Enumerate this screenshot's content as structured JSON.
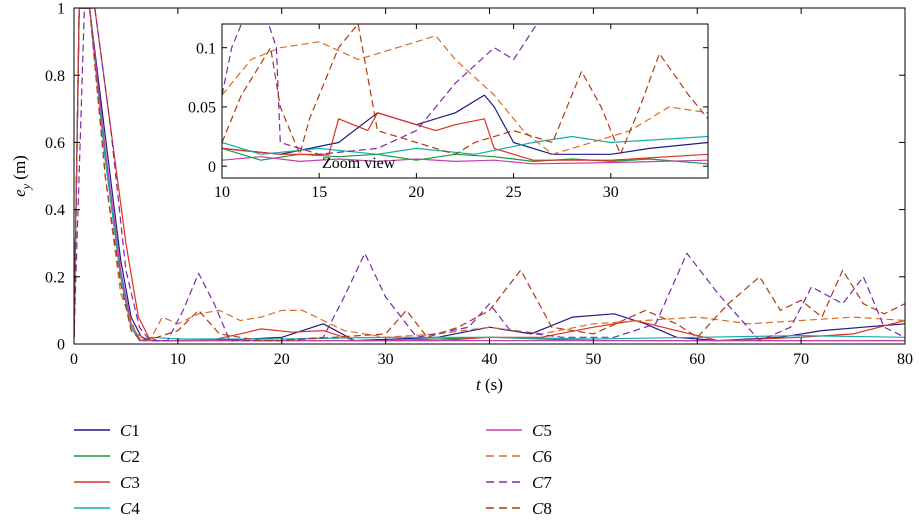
{
  "chart_data": [
    {
      "panel": "main",
      "type": "line",
      "xlabel": "t (s)",
      "xlabel_italic": "t",
      "xlabel_unit": "(s)",
      "ylabel": "e_y (m)",
      "ylabel_base": "e",
      "ylabel_sub": "y",
      "ylabel_unit": "(m)",
      "xlim": [
        0,
        80
      ],
      "ylim": [
        0,
        1.0
      ],
      "xticks": [
        0,
        10,
        20,
        30,
        40,
        50,
        60,
        70,
        80
      ],
      "xtick_labels": [
        "0",
        "10",
        "20",
        "30",
        "40",
        "50",
        "60",
        "70",
        "80"
      ],
      "yticks": [
        0,
        0.2,
        0.4,
        0.6,
        0.8,
        1.0
      ],
      "ytick_labels": [
        "0",
        "0.2",
        "0.4",
        "0.6",
        "0.8",
        "1"
      ],
      "grid": false,
      "legend_placement": "bottom, two columns",
      "series": [
        {
          "name": "C1",
          "color": "#1f1a8a",
          "dash": "solid",
          "x": [
            0,
            0.5,
            1.5,
            3,
            4.5,
            5.5,
            6.5,
            7.5,
            10,
            15,
            20,
            24,
            27,
            35,
            40,
            44,
            48,
            52,
            55,
            58,
            62,
            68,
            72,
            76,
            80
          ],
          "y": [
            0.02,
            1.0,
            1.0,
            0.62,
            0.25,
            0.08,
            0.02,
            0.01,
            0.01,
            0.012,
            0.02,
            0.06,
            0.01,
            0.02,
            0.05,
            0.03,
            0.08,
            0.09,
            0.06,
            0.02,
            0.01,
            0.02,
            0.04,
            0.05,
            0.06
          ]
        },
        {
          "name": "C2",
          "color": "#1a9a3a",
          "dash": "solid",
          "x": [
            0,
            0.5,
            1.5,
            3,
            4.5,
            5.5,
            6.3,
            7.5,
            10,
            20,
            30,
            40,
            50,
            60,
            70,
            80
          ],
          "y": [
            0.02,
            1.0,
            1.0,
            0.55,
            0.2,
            0.05,
            0.01,
            0.01,
            0.01,
            0.01,
            0.01,
            0.02,
            0.01,
            0.01,
            0.01,
            0.01
          ]
        },
        {
          "name": "C3",
          "color": "#e03020",
          "dash": "solid",
          "x": [
            0,
            0.5,
            2,
            3.5,
            5,
            6.2,
            7.2,
            8,
            10,
            13,
            16,
            18,
            21,
            24,
            27,
            35,
            40,
            45,
            50,
            54,
            58,
            62,
            70,
            75,
            80
          ],
          "y": [
            0.02,
            1.0,
            1.0,
            0.65,
            0.3,
            0.08,
            0.02,
            0.01,
            0.01,
            0.01,
            0.03,
            0.045,
            0.035,
            0.04,
            0.01,
            0.01,
            0.02,
            0.02,
            0.05,
            0.07,
            0.04,
            0.01,
            0.02,
            0.03,
            0.07
          ]
        },
        {
          "name": "C4",
          "color": "#10b0a8",
          "dash": "solid",
          "x": [
            0,
            0.5,
            1.5,
            3,
            4.5,
            5.5,
            6.4,
            7.5,
            10,
            20,
            30,
            40,
            50,
            60,
            70,
            80
          ],
          "y": [
            0.02,
            1.0,
            1.0,
            0.55,
            0.2,
            0.05,
            0.01,
            0.02,
            0.015,
            0.015,
            0.02,
            0.02,
            0.015,
            0.02,
            0.025,
            0.02
          ]
        },
        {
          "name": "C5",
          "color": "#c040b0",
          "dash": "solid",
          "x": [
            0,
            0.5,
            1.5,
            3,
            4.5,
            5.5,
            6.4,
            7.5,
            10,
            20,
            30,
            40,
            50,
            60,
            70,
            80
          ],
          "y": [
            0.02,
            1.0,
            1.0,
            0.58,
            0.22,
            0.06,
            0.01,
            0.01,
            0.01,
            0.01,
            0.01,
            0.01,
            0.01,
            0.01,
            0.01,
            0.01
          ]
        },
        {
          "name": "C6",
          "color": "#e06a20",
          "dash": "dashed",
          "x": [
            0,
            0.5,
            1.5,
            3,
            4.5,
            6,
            7.3,
            8.5,
            10,
            12,
            14,
            16,
            18,
            20,
            22,
            24,
            26,
            30,
            35,
            40,
            45,
            50,
            55,
            60,
            65,
            70,
            75,
            80
          ],
          "y": [
            0.02,
            1.0,
            1.0,
            0.5,
            0.15,
            0.03,
            0.01,
            0.08,
            0.06,
            0.09,
            0.1,
            0.07,
            0.08,
            0.1,
            0.1,
            0.07,
            0.04,
            0.02,
            0.03,
            0.05,
            0.03,
            0.06,
            0.07,
            0.08,
            0.06,
            0.07,
            0.08,
            0.07
          ]
        },
        {
          "name": "C7",
          "color": "#7a2aa8",
          "dash": "dashed",
          "x": [
            0,
            1,
            2,
            3.5,
            5,
            6.3,
            7.3,
            9,
            10.5,
            12,
            13.5,
            15,
            20,
            24,
            26,
            28,
            30,
            33,
            38,
            40,
            42,
            47,
            52,
            56,
            59,
            62,
            66,
            69,
            71,
            74,
            76,
            78,
            80
          ],
          "y": [
            0.02,
            1.0,
            1.0,
            0.65,
            0.22,
            0.05,
            0.01,
            0.01,
            0.1,
            0.21,
            0.12,
            0.01,
            0.01,
            0.02,
            0.14,
            0.27,
            0.14,
            0.02,
            0.05,
            0.12,
            0.04,
            0.02,
            0.02,
            0.06,
            0.27,
            0.15,
            0.01,
            0.05,
            0.17,
            0.12,
            0.2,
            0.05,
            0.02
          ]
        },
        {
          "name": "C8",
          "color": "#b03a10",
          "dash": "dashed",
          "x": [
            0,
            0.5,
            1.5,
            3,
            4.5,
            5.5,
            6.5,
            8,
            10,
            12,
            14,
            16,
            18,
            20,
            25,
            30,
            32,
            34,
            37,
            40,
            43,
            46,
            50,
            55,
            58,
            60,
            63,
            66,
            68,
            70,
            72,
            74,
            76,
            78,
            80
          ],
          "y": [
            0.02,
            1.0,
            1.0,
            0.5,
            0.18,
            0.04,
            0.01,
            0.02,
            0.04,
            0.1,
            0.03,
            0.02,
            0.01,
            0.01,
            0.02,
            0.03,
            0.1,
            0.02,
            0.05,
            0.1,
            0.22,
            0.05,
            0.03,
            0.1,
            0.06,
            0.02,
            0.12,
            0.2,
            0.1,
            0.13,
            0.08,
            0.22,
            0.12,
            0.09,
            0.12
          ]
        }
      ]
    },
    {
      "panel": "inset",
      "type": "line",
      "annotation": "Zoom view",
      "xlim": [
        10,
        35
      ],
      "ylim": [
        -0.01,
        0.12
      ],
      "xticks": [
        10,
        15,
        20,
        25,
        30
      ],
      "xtick_labels": [
        "10",
        "15",
        "20",
        "25",
        "30"
      ],
      "yticks": [
        0,
        0.05,
        0.1
      ],
      "ytick_labels": [
        "0",
        "0.05",
        "0.1"
      ],
      "series": [
        {
          "name": "C1",
          "color": "#1f1a8a",
          "dash": "solid",
          "x": [
            10,
            13,
            16,
            18,
            20,
            22,
            23.5,
            24,
            25,
            27,
            30,
            32,
            35
          ],
          "y": [
            0.015,
            0.01,
            0.02,
            0.045,
            0.035,
            0.045,
            0.06,
            0.05,
            0.02,
            0.01,
            0.01,
            0.015,
            0.02
          ]
        },
        {
          "name": "C2",
          "color": "#1a9a3a",
          "dash": "solid",
          "x": [
            10,
            12,
            14,
            16,
            18,
            20,
            22,
            24,
            26,
            28,
            30,
            32,
            35
          ],
          "y": [
            0.015,
            0.005,
            0.01,
            0.008,
            0.01,
            0.005,
            0.01,
            0.008,
            0.004,
            0.006,
            0.004,
            0.006,
            0.002
          ]
        },
        {
          "name": "C3",
          "color": "#e03020",
          "dash": "solid",
          "x": [
            10,
            13,
            15.5,
            16,
            17.5,
            18,
            21,
            22,
            23.5,
            24,
            26,
            30,
            35
          ],
          "y": [
            0.015,
            0.01,
            0.01,
            0.04,
            0.03,
            0.045,
            0.03,
            0.035,
            0.04,
            0.015,
            0.005,
            0.005,
            0.01
          ]
        },
        {
          "name": "C4",
          "color": "#10b0a8",
          "dash": "solid",
          "x": [
            10,
            12,
            15,
            18,
            20,
            23,
            26,
            28,
            30,
            32,
            35
          ],
          "y": [
            0.02,
            0.01,
            0.015,
            0.01,
            0.015,
            0.01,
            0.02,
            0.025,
            0.02,
            0.022,
            0.025
          ]
        },
        {
          "name": "C5",
          "color": "#c040b0",
          "dash": "solid",
          "x": [
            10,
            12,
            14,
            16,
            18,
            20,
            22,
            24,
            26,
            30,
            35
          ],
          "y": [
            0.005,
            0.008,
            0.004,
            0.006,
            0.004,
            0.006,
            0.004,
            0.005,
            0.002,
            0.003,
            0.005
          ]
        },
        {
          "name": "C6",
          "color": "#e06a20",
          "dash": "dashed",
          "x": [
            10,
            11.5,
            13,
            15,
            17,
            19,
            21,
            22,
            24,
            25.5,
            27,
            29,
            31,
            33,
            35
          ],
          "y": [
            0.06,
            0.09,
            0.1,
            0.105,
            0.09,
            0.1,
            0.11,
            0.09,
            0.06,
            0.03,
            0.01,
            0.02,
            0.03,
            0.05,
            0.045
          ]
        },
        {
          "name": "C7",
          "color": "#7a2aa8",
          "dash": "dashed",
          "x": [
            10,
            10.5,
            11,
            12,
            12.8,
            13,
            15,
            18,
            20,
            22,
            24,
            25,
            27
          ],
          "y": [
            0.06,
            0.1,
            0.12,
            0.14,
            0.1,
            0.02,
            0.01,
            0.015,
            0.03,
            0.07,
            0.1,
            0.09,
            0.14
          ]
        },
        {
          "name": "C8",
          "color": "#b03a10",
          "dash": "dashed",
          "x": [
            10,
            11,
            12.5,
            13,
            14,
            14.5,
            16,
            17,
            18,
            20,
            22,
            23,
            25,
            27,
            28.5,
            29.5,
            30.5,
            31.5,
            32.5,
            34,
            35
          ],
          "y": [
            0.02,
            0.06,
            0.1,
            0.05,
            0.01,
            0.04,
            0.1,
            0.12,
            0.03,
            0.02,
            0.01,
            0.02,
            0.03,
            0.02,
            0.08,
            0.05,
            0.01,
            0.05,
            0.095,
            0.06,
            0.04
          ]
        }
      ]
    }
  ]
}
